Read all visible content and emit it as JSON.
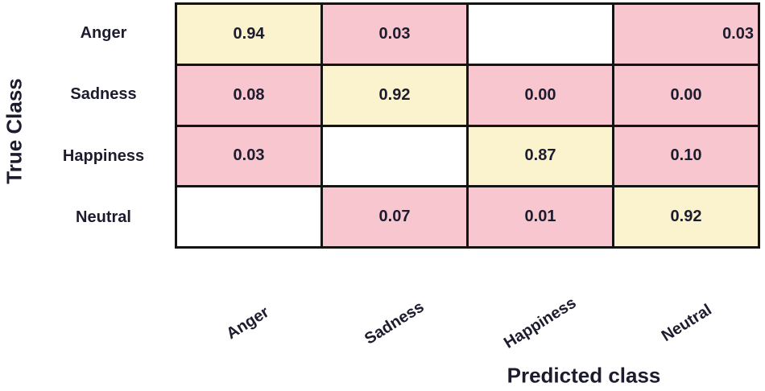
{
  "chart_data": {
    "type": "heatmap",
    "subtype": "confusion-matrix",
    "title": "",
    "ylabel": "True Class",
    "xlabel": "Predicted class",
    "row_labels": [
      "Anger",
      "Sadness",
      "Happiness",
      "Neutral"
    ],
    "col_labels": [
      "Anger",
      "Sadness",
      "Happiness",
      "Neutral"
    ],
    "matrix": [
      [
        0.94,
        0.03,
        null,
        0.03
      ],
      [
        0.08,
        0.92,
        0.0,
        0.0
      ],
      [
        0.03,
        null,
        0.87,
        0.1
      ],
      [
        null,
        0.07,
        0.01,
        0.92
      ]
    ],
    "cell_text": [
      [
        "0.94",
        "0.03",
        "",
        "0.03"
      ],
      [
        "0.08",
        "0.92",
        "0.00",
        "0.00"
      ],
      [
        "0.03",
        "",
        "0.87",
        "0.10"
      ],
      [
        "",
        "0.07",
        "0.01",
        "0.92"
      ]
    ],
    "cell_fill_type": [
      [
        "diag",
        "off",
        "blank",
        "off"
      ],
      [
        "off",
        "diag",
        "off",
        "off"
      ],
      [
        "off",
        "blank",
        "diag",
        "off"
      ],
      [
        "blank",
        "off",
        "off",
        "diag"
      ]
    ],
    "align_overrides": [
      {
        "row": 0,
        "col": 3,
        "align": "right"
      }
    ],
    "colors": {
      "diag": "#FAF3CD",
      "off": "#F7C6CF",
      "blank": "#FFFFFF",
      "border": "#141414",
      "text": "#1C1C2E"
    },
    "x_tick_rotation_deg": -32,
    "legend": "none",
    "grid": "table-borders"
  }
}
